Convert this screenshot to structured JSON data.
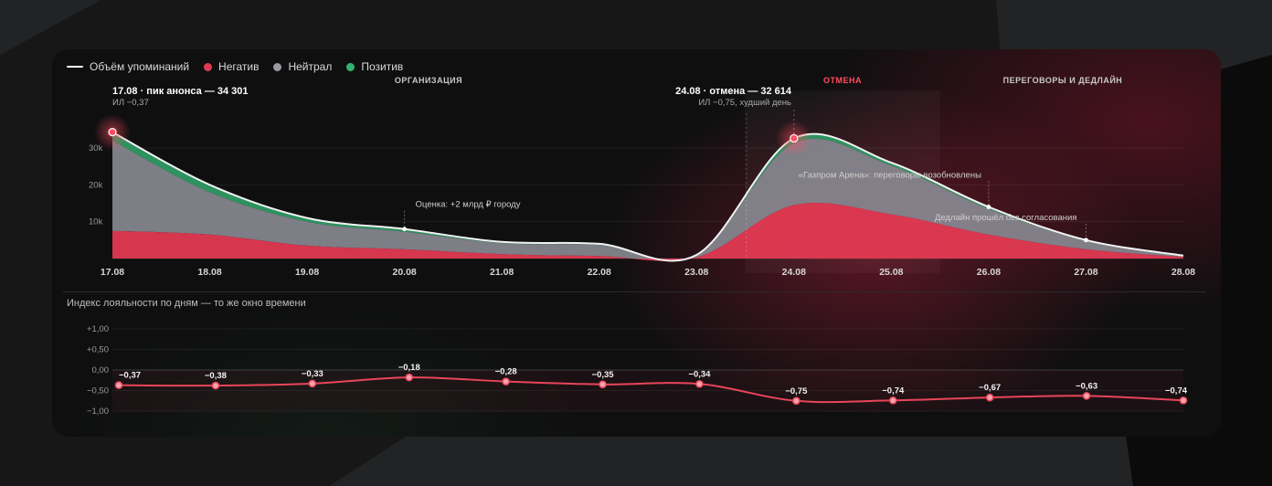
{
  "legend": {
    "volume": "Объём упоминаний",
    "negative": "Негатив",
    "neutral": "Нейтрал",
    "positive": "Позитив"
  },
  "colors": {
    "negative": "#e23a52",
    "neutral": "#8a8b93",
    "positive": "#2f9a63",
    "line": "#f2f2f2",
    "loyalty": "#e8455a",
    "accent_red": "#ff4d5e"
  },
  "phases": {
    "organization": "ОРГАНИЗАЦИЯ",
    "cancel": "ОТМЕНА",
    "negotiation": "ПЕРЕГОВОРЫ И ДЕДЛАЙН"
  },
  "annotations": {
    "peak_title": "17.08 · пик анонса — 34 301",
    "peak_sub": "ИЛ −0,37",
    "cancel_title": "24.08 · отмена — 32 614",
    "cancel_sub": "ИЛ −0,75, худший день",
    "estimate": "Оценка: +2 млрд ₽ городу",
    "gazprom": "«Газпром Арена»: переговоры возобновлены",
    "deadline": "Дедлайн прошёл без согласования"
  },
  "loyalty_title": "Индекс лояльности по дням — то же окно времени",
  "chart_data": [
    {
      "type": "area",
      "x": [
        "17.08",
        "18.08",
        "19.08",
        "20.08",
        "21.08",
        "22.08",
        "23.08",
        "24.08",
        "25.08",
        "26.08",
        "27.08",
        "28.08"
      ],
      "y_ticks": [
        "10k",
        "20k",
        "30k"
      ],
      "ylim": [
        0,
        35000
      ],
      "series": [
        {
          "name": "Объём упоминаний",
          "values": [
            34301,
            20000,
            11000,
            8000,
            4500,
            4000,
            1000,
            32614,
            26000,
            14000,
            5000,
            800
          ]
        },
        {
          "name": "Негатив",
          "values": [
            7500,
            6500,
            3500,
            2500,
            1200,
            700,
            300,
            14500,
            12000,
            6500,
            2500,
            400
          ]
        },
        {
          "name": "Нейтрал",
          "values": [
            24500,
            11500,
            6500,
            4800,
            3000,
            3000,
            600,
            16800,
            13200,
            7000,
            2300,
            350
          ]
        },
        {
          "name": "Позитив",
          "values": [
            2300,
            2000,
            1000,
            700,
            300,
            300,
            100,
            1300,
            800,
            500,
            200,
            50
          ]
        }
      ],
      "highlights": [
        "17.08",
        "24.08"
      ],
      "grid": true
    },
    {
      "type": "line",
      "x": [
        "17.08",
        "18.08",
        "19.08",
        "20.08",
        "21.08",
        "22.08",
        "23.08",
        "24.08",
        "25.08",
        "26.08",
        "27.08",
        "28.08"
      ],
      "y_ticks": [
        "+1,00",
        "+0,50",
        "0,00",
        "−0,50",
        "−1,00"
      ],
      "ylim": [
        -1,
        1
      ],
      "values": [
        -0.37,
        -0.38,
        -0.33,
        -0.18,
        -0.28,
        -0.35,
        -0.34,
        -0.75,
        -0.74,
        -0.67,
        -0.63,
        -0.74
      ],
      "value_labels": [
        "−0,37",
        "−0,38",
        "−0,33",
        "−0,18",
        "−0,28",
        "−0,35",
        "−0,34",
        "−0,75",
        "−0,74",
        "−0,67",
        "−0,63",
        "−0,74"
      ],
      "grid": true
    }
  ]
}
